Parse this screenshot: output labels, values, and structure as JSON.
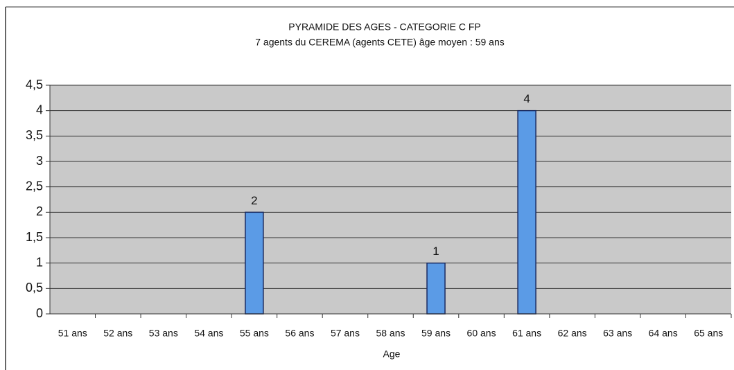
{
  "chart_data": {
    "type": "bar",
    "title": "PYRAMIDE DES AGES  - CATEGORIE C FP",
    "subtitle": "7 agents du CEREMA (agents CETE) âge moyen : 59 ans",
    "x_label": "Age",
    "categories": [
      "51 ans",
      "52 ans",
      "53 ans",
      "54 ans",
      "55 ans",
      "56 ans",
      "57 ans",
      "58 ans",
      "59 ans",
      "60 ans",
      "61 ans",
      "62 ans",
      "63 ans",
      "64 ans",
      "65 ans"
    ],
    "values": [
      0,
      0,
      0,
      0,
      2,
      0,
      0,
      0,
      1,
      0,
      4,
      0,
      0,
      0,
      0
    ],
    "color": "#5b9be6",
    "ylim": [
      0,
      4.5
    ],
    "yticks": [
      0,
      {
        "value": 0.5,
        "label": "0,5"
      },
      1,
      {
        "value": 1.5,
        "label": "1,5"
      },
      2,
      {
        "value": 2.5,
        "label": "2,5"
      },
      3,
      {
        "value": 3.5,
        "label": "3,5"
      },
      4,
      {
        "value": 4.5,
        "label": "4,5"
      }
    ],
    "grid": true
  }
}
